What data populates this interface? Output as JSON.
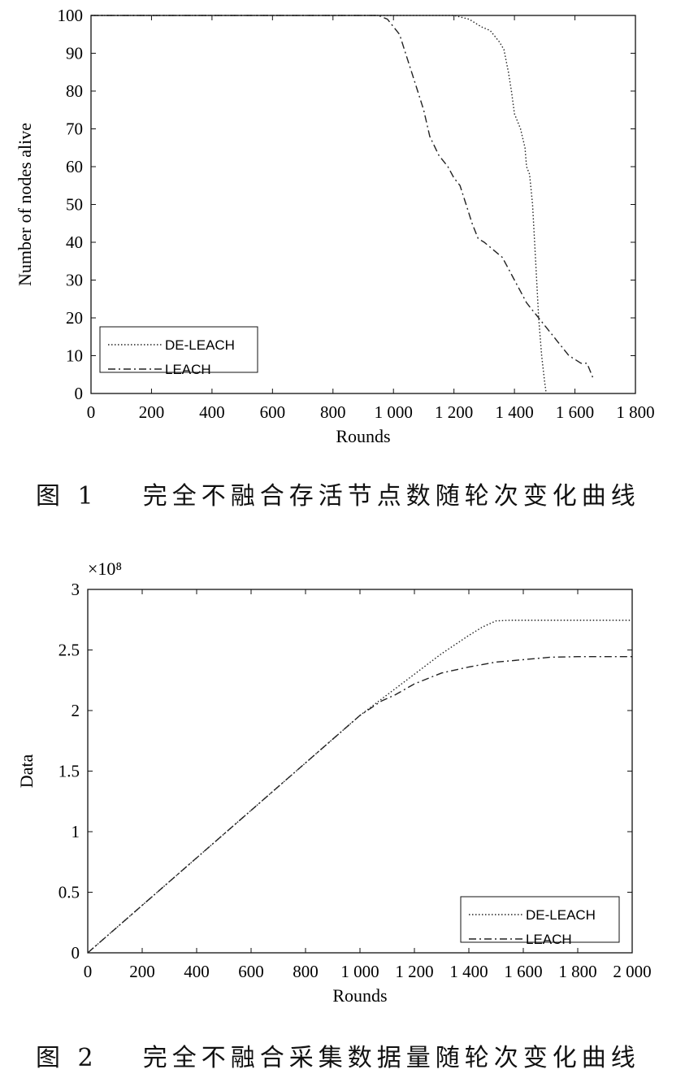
{
  "figures": [
    {
      "caption": {
        "number": "图 1",
        "text": "完全不融合存活节点数随轮次变化曲线"
      },
      "chart_data": {
        "type": "line",
        "title": "",
        "xlabel": "Rounds",
        "ylabel": "Number of nodes alive",
        "xlim": [
          0,
          1800
        ],
        "ylim": [
          0,
          100
        ],
        "xticks": [
          0,
          200,
          400,
          600,
          800,
          1000,
          1200,
          1400,
          1600,
          1800
        ],
        "xtick_labels": [
          "0",
          "200",
          "400",
          "600",
          "800",
          "1 000",
          "1 200",
          "1 400",
          "1 600",
          "1 800"
        ],
        "yticks": [
          0,
          10,
          20,
          30,
          40,
          50,
          60,
          70,
          80,
          90,
          100
        ],
        "ytick_labels": [
          "0",
          "10",
          "20",
          "30",
          "40",
          "50",
          "60",
          "70",
          "80",
          "90",
          "100"
        ],
        "y_multiplier": "",
        "grid": false,
        "legend_position": "bottom-left",
        "series": [
          {
            "name": "DE-LEACH",
            "style": "dotted",
            "color": "#222222",
            "x": [
              0,
              1200,
              1250,
              1290,
              1320,
              1350,
              1365,
              1380,
              1390,
              1400,
              1420,
              1435,
              1440,
              1450,
              1460,
              1470,
              1480,
              1490,
              1500,
              1505
            ],
            "y": [
              100,
              100,
              99,
              97,
              96,
              93,
              91,
              85,
              80,
              74,
              70,
              65,
              60,
              58,
              50,
              35,
              20,
              10,
              3,
              0
            ]
          },
          {
            "name": "LEACH",
            "style": "dashdot",
            "color": "#222222",
            "x": [
              0,
              950,
              980,
              1000,
              1020,
              1040,
              1060,
              1080,
              1100,
              1120,
              1150,
              1180,
              1200,
              1220,
              1240,
              1260,
              1280,
              1300,
              1330,
              1360,
              1380,
              1400,
              1420,
              1440,
              1460,
              1480,
              1500,
              1520,
              1540,
              1560,
              1580,
              1600,
              1620,
              1640,
              1650,
              1660
            ],
            "y": [
              100,
              100,
              99,
              97,
              95,
              90,
              85,
              80,
              75,
              68,
              63,
              60,
              57,
              55,
              50,
              45,
              41,
              40,
              38,
              36,
              33,
              30,
              27,
              24,
              22,
              20,
              18,
              16,
              14,
              12,
              10,
              9,
              8,
              8,
              6,
              4
            ]
          }
        ]
      }
    },
    {
      "caption": {
        "number": "图 2",
        "text": "完全不融合采集数据量随轮次变化曲线"
      },
      "chart_data": {
        "type": "line",
        "title": "",
        "xlabel": "Rounds",
        "ylabel": "Data",
        "xlim": [
          0,
          2000
        ],
        "ylim": [
          0,
          3
        ],
        "xticks": [
          0,
          200,
          400,
          600,
          800,
          1000,
          1200,
          1400,
          1600,
          1800,
          2000
        ],
        "xtick_labels": [
          "0",
          "200",
          "400",
          "600",
          "800",
          "1 000",
          "1 200",
          "1 400",
          "1 600",
          "1 800",
          "2 000"
        ],
        "yticks": [
          0,
          0.5,
          1,
          1.5,
          2,
          2.5,
          3
        ],
        "ytick_labels": [
          "0",
          "0.5",
          "1",
          "1.5",
          "2",
          "2.5",
          "3"
        ],
        "y_multiplier": "×10⁸",
        "grid": false,
        "legend_position": "bottom-right",
        "series": [
          {
            "name": "DE-LEACH",
            "style": "dotted",
            "color": "#222222",
            "x": [
              0,
              1000,
              1100,
              1200,
              1300,
              1400,
              1450,
              1500,
              1550,
              1600,
              1800,
              2000
            ],
            "y": [
              0,
              1.96,
              2.13,
              2.3,
              2.47,
              2.62,
              2.69,
              2.74,
              2.745,
              2.745,
              2.745,
              2.745
            ]
          },
          {
            "name": "LEACH",
            "style": "dashdot",
            "color": "#222222",
            "x": [
              0,
              1000,
              1080,
              1130,
              1200,
              1300,
              1400,
              1500,
              1600,
              1700,
              1800,
              2000
            ],
            "y": [
              0,
              1.96,
              2.08,
              2.13,
              2.22,
              2.31,
              2.36,
              2.4,
              2.42,
              2.44,
              2.445,
              2.445
            ]
          }
        ]
      }
    }
  ]
}
